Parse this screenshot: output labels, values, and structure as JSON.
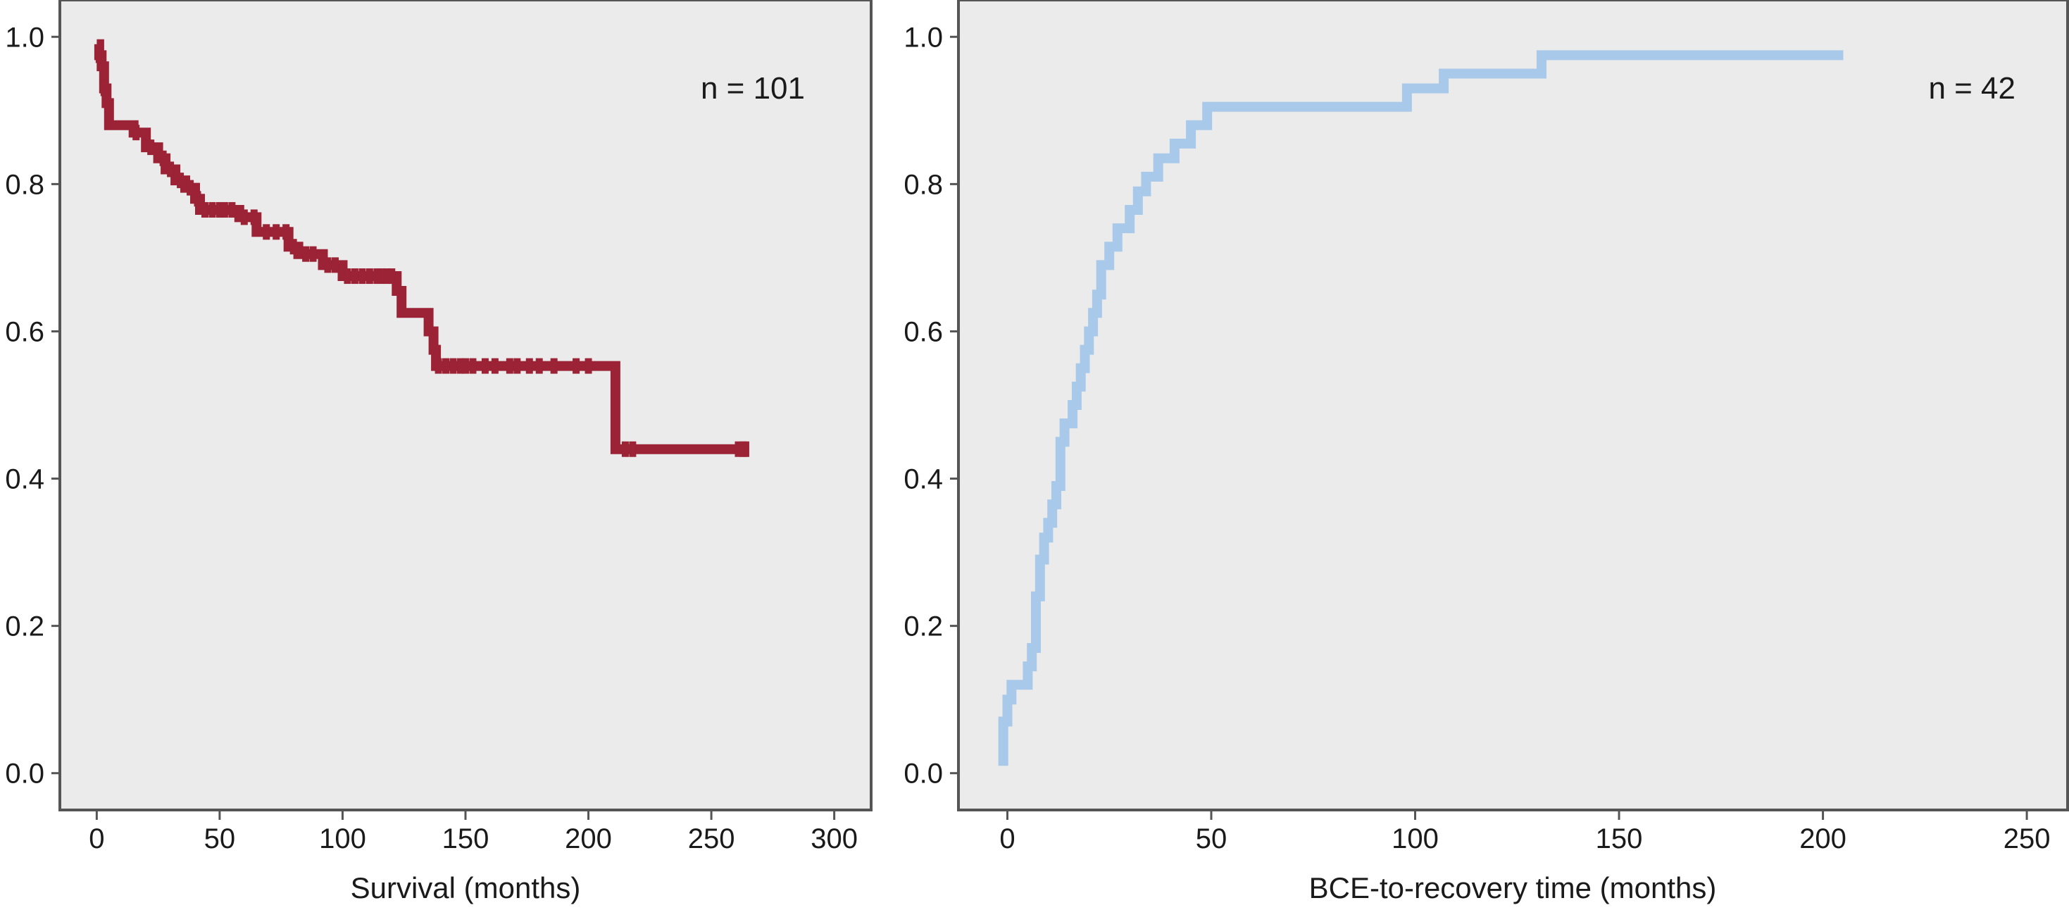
{
  "chart_data": [
    {
      "type": "line",
      "subtype": "kaplan-meier-step",
      "title": "",
      "xlabel": "Survival (months)",
      "ylabel": "",
      "xlim": [
        -15,
        315
      ],
      "ylim": [
        -0.05,
        1.05
      ],
      "xticks": [
        "0",
        "50",
        "100",
        "150",
        "200",
        "250",
        "300"
      ],
      "yticks": [
        "0.0",
        "0.2",
        "0.4",
        "0.6",
        "0.8",
        "1.0"
      ],
      "grid": false,
      "annotation": "n = 101",
      "color": "#9b2335",
      "background": "#ebebeb",
      "series": [
        {
          "x": [
            0,
            1,
            1,
            2,
            2,
            3,
            3,
            4,
            4,
            5,
            5,
            15,
            15,
            20,
            20,
            25,
            25,
            28,
            28,
            32,
            32,
            36,
            36,
            40,
            40,
            42,
            42,
            58,
            58,
            65,
            65,
            78,
            78,
            82,
            82,
            92,
            92,
            100,
            100,
            122,
            122,
            124,
            124,
            135,
            135,
            137,
            137,
            138,
            138,
            211,
            211,
            264
          ],
          "y": [
            0.99,
            0.99,
            0.975,
            0.975,
            0.96,
            0.96,
            0.93,
            0.93,
            0.91,
            0.91,
            0.88,
            0.88,
            0.87,
            0.87,
            0.85,
            0.85,
            0.835,
            0.835,
            0.82,
            0.82,
            0.805,
            0.805,
            0.795,
            0.795,
            0.78,
            0.78,
            0.765,
            0.765,
            0.755,
            0.755,
            0.735,
            0.735,
            0.715,
            0.715,
            0.705,
            0.705,
            0.69,
            0.69,
            0.675,
            0.675,
            0.655,
            0.655,
            0.625,
            0.625,
            0.6,
            0.6,
            0.575,
            0.575,
            0.553,
            0.553,
            0.44,
            0.44
          ]
        }
      ]
    },
    {
      "type": "line",
      "subtype": "cumulative-incidence-step",
      "title": "",
      "xlabel": "BCE-to-recovery time (months)",
      "ylabel": "",
      "xlim": [
        -12,
        260
      ],
      "ylim": [
        -0.05,
        1.05
      ],
      "xticks": [
        "0",
        "50",
        "100",
        "150",
        "200",
        "250"
      ],
      "yticks": [
        "0.0",
        "0.2",
        "0.4",
        "0.6",
        "0.8",
        "1.0"
      ],
      "grid": false,
      "annotation": "n = 42",
      "color": "#a9c9ea",
      "background": "#ebebeb",
      "series": [
        {
          "x": [
            -1,
            -1,
            0,
            0,
            1,
            1,
            5,
            5,
            6,
            6,
            7,
            7,
            8,
            8,
            9,
            9,
            10,
            10,
            11,
            11,
            12,
            12,
            13,
            13,
            14,
            14,
            16,
            16,
            17,
            17,
            18,
            18,
            19,
            19,
            20,
            20,
            21,
            21,
            22,
            22,
            23,
            23,
            25,
            25,
            27,
            27,
            30,
            30,
            32,
            32,
            34,
            34,
            37,
            37,
            41,
            41,
            45,
            45,
            49,
            49,
            98,
            98,
            107,
            107,
            131,
            131,
            205
          ],
          "y": [
            0.01,
            0.07,
            0.07,
            0.1,
            0.1,
            0.12,
            0.12,
            0.145,
            0.145,
            0.17,
            0.17,
            0.24,
            0.24,
            0.29,
            0.29,
            0.32,
            0.32,
            0.34,
            0.34,
            0.365,
            0.365,
            0.39,
            0.39,
            0.45,
            0.45,
            0.475,
            0.475,
            0.5,
            0.5,
            0.525,
            0.525,
            0.55,
            0.55,
            0.575,
            0.575,
            0.6,
            0.6,
            0.625,
            0.625,
            0.65,
            0.65,
            0.69,
            0.69,
            0.715,
            0.715,
            0.74,
            0.74,
            0.765,
            0.765,
            0.79,
            0.79,
            0.81,
            0.81,
            0.835,
            0.835,
            0.855,
            0.855,
            0.88,
            0.88,
            0.905,
            0.905,
            0.93,
            0.93,
            0.95,
            0.95,
            0.975,
            0.975
          ]
        }
      ]
    }
  ]
}
